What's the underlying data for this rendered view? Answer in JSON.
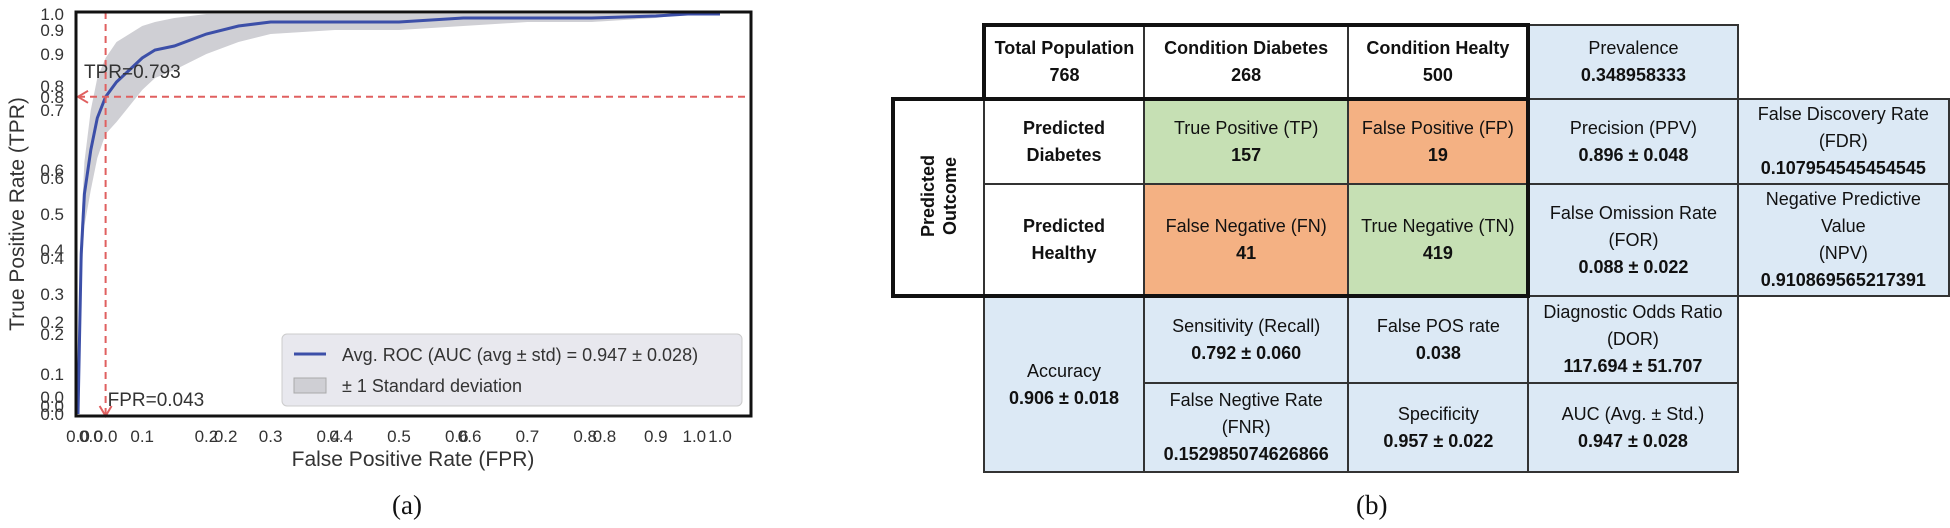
{
  "chart_data": {
    "type": "line",
    "xlabel": "False Positive Rate (FPR)",
    "ylabel": "True Positive Rate (TPR)",
    "xlim": [
      0.0,
      1.0
    ],
    "ylim": [
      0.0,
      1.0
    ],
    "x_ticks": [
      "0.0",
      "0.0",
      "0.0",
      "0.1",
      "0.2",
      "0.2",
      "0.3",
      "0.4",
      "0.4",
      "0.5",
      "0.6",
      "0.6",
      "0.7",
      "0.8",
      "0.8",
      "0.9",
      "1.0",
      "1.0"
    ],
    "x_tick_values": [
      0.0,
      0.02,
      0.043,
      0.1,
      0.2,
      0.23,
      0.3,
      0.39,
      0.41,
      0.5,
      0.59,
      0.61,
      0.7,
      0.79,
      0.82,
      0.9,
      0.96,
      1.0
    ],
    "y_ticks": [
      "1.0",
      "0.9",
      "0.9",
      "0.8",
      "0.8",
      "0.7",
      "0.6",
      "0.6",
      "0.5",
      "0.4",
      "0.4",
      "0.3",
      "0.2",
      "0.2",
      "0.1",
      "0.0",
      "0.0",
      "0.0"
    ],
    "y_tick_values": [
      1.0,
      0.96,
      0.9,
      0.82,
      0.793,
      0.76,
      0.61,
      0.59,
      0.5,
      0.41,
      0.39,
      0.3,
      0.23,
      0.2,
      0.1,
      0.043,
      0.02,
      0.0
    ],
    "series": [
      {
        "name": "Avg. ROC (AUC (avg ± std) = 0.947 ± 0.028)",
        "x": [
          0.0,
          0.005,
          0.01,
          0.02,
          0.03,
          0.043,
          0.06,
          0.08,
          0.1,
          0.12,
          0.15,
          0.2,
          0.25,
          0.3,
          0.4,
          0.5,
          0.6,
          0.7,
          0.8,
          0.9,
          0.95,
          0.97,
          1.0
        ],
        "y": [
          0.0,
          0.4,
          0.55,
          0.66,
          0.74,
          0.793,
          0.83,
          0.86,
          0.89,
          0.91,
          0.92,
          0.95,
          0.97,
          0.98,
          0.98,
          0.98,
          0.99,
          0.99,
          0.99,
          0.995,
          1.0,
          1.0,
          1.0
        ]
      },
      {
        "name": "± 1 Standard deviation",
        "x": [
          0.0,
          0.005,
          0.01,
          0.02,
          0.03,
          0.043,
          0.06,
          0.08,
          0.1,
          0.12,
          0.15,
          0.2,
          0.25,
          0.3,
          0.4,
          0.5,
          0.6,
          0.7,
          0.8,
          0.9,
          0.95,
          0.97,
          1.0
        ],
        "upper": [
          0.0,
          0.47,
          0.63,
          0.76,
          0.84,
          0.89,
          0.93,
          0.95,
          0.97,
          0.98,
          0.99,
          1.0,
          1.0,
          1.0,
          1.0,
          1.0,
          1.0,
          1.0,
          1.0,
          1.0,
          1.0,
          1.0,
          1.0
        ],
        "lower": [
          0.0,
          0.33,
          0.47,
          0.56,
          0.64,
          0.7,
          0.73,
          0.77,
          0.81,
          0.84,
          0.86,
          0.9,
          0.93,
          0.95,
          0.96,
          0.96,
          0.97,
          0.98,
          0.98,
          0.99,
          1.0,
          1.0,
          1.0
        ]
      }
    ],
    "annotations": [
      {
        "text": "TPR=0.793",
        "y": 0.793
      },
      {
        "text": "FPR=0.043",
        "x": 0.043
      }
    ],
    "legend_placement": "bottom-right"
  },
  "captions": {
    "a": "(a)",
    "b": "(b)"
  },
  "colors": {
    "roc_line": "#3c4fa8",
    "std_band": "#cfcfd4",
    "ref_line": "#e06060",
    "legend_bg": "#e8e8ee",
    "tp_tn": "#c6e0b4",
    "fp_fn": "#f4b183",
    "metric": "#dce9f5"
  },
  "table": {
    "total": {
      "label": "Total Population",
      "value": "768"
    },
    "cond_diabetes": {
      "label": "Condition Diabetes",
      "value": "268"
    },
    "cond_healthy": {
      "label": "Condition Healty",
      "value": "500"
    },
    "prevalence": {
      "label": "Prevalence",
      "value": "0.348958333"
    },
    "predicted_outcome": {
      "line1": "Predicted",
      "line2": "Outcome"
    },
    "pred_diabetes": {
      "line1": "Predicted",
      "line2": "Diabetes"
    },
    "pred_healthy": {
      "line1": "Predicted",
      "line2": "Healthy"
    },
    "tp": {
      "label": "True Positive (TP)",
      "value": "157"
    },
    "fp": {
      "label": "False Positive (FP)",
      "value": "19"
    },
    "fn": {
      "label": "False Negative (FN)",
      "value": "41"
    },
    "tn": {
      "label": "True Negative (TN)",
      "value": "419"
    },
    "precision": {
      "label": "Precision (PPV)",
      "value": "0.896 ± 0.048"
    },
    "fdr": {
      "label": "False Discovery Rate (FDR)",
      "value": "0.107954545454545"
    },
    "for": {
      "line1": "False Omission Rate",
      "line2": "(FOR)",
      "value": "0.088 ± 0.022"
    },
    "npv": {
      "line1": "Negative Predictive Value",
      "line2": "(NPV)",
      "value": "0.910869565217391"
    },
    "accuracy": {
      "label": "Accuracy",
      "value": "0.906 ± 0.018"
    },
    "sensitivity": {
      "label": "Sensitivity (Recall)",
      "value": "0.792 ± 0.060"
    },
    "false_pos_rate": {
      "label": "False POS rate",
      "value": "0.038"
    },
    "dor": {
      "line1": "Diagnostic Odds Ratio",
      "line2": "(DOR)",
      "value": "117.694 ± 51.707"
    },
    "fnr": {
      "line1": "False Negtive Rate",
      "line2": "(FNR)",
      "value": "0.152985074626866"
    },
    "specificity": {
      "label": "Specificity",
      "value": "0.957 ± 0.022"
    },
    "auc": {
      "label": "AUC (Avg.  ±  Std.)",
      "value": "0.947 ± 0.028"
    }
  }
}
